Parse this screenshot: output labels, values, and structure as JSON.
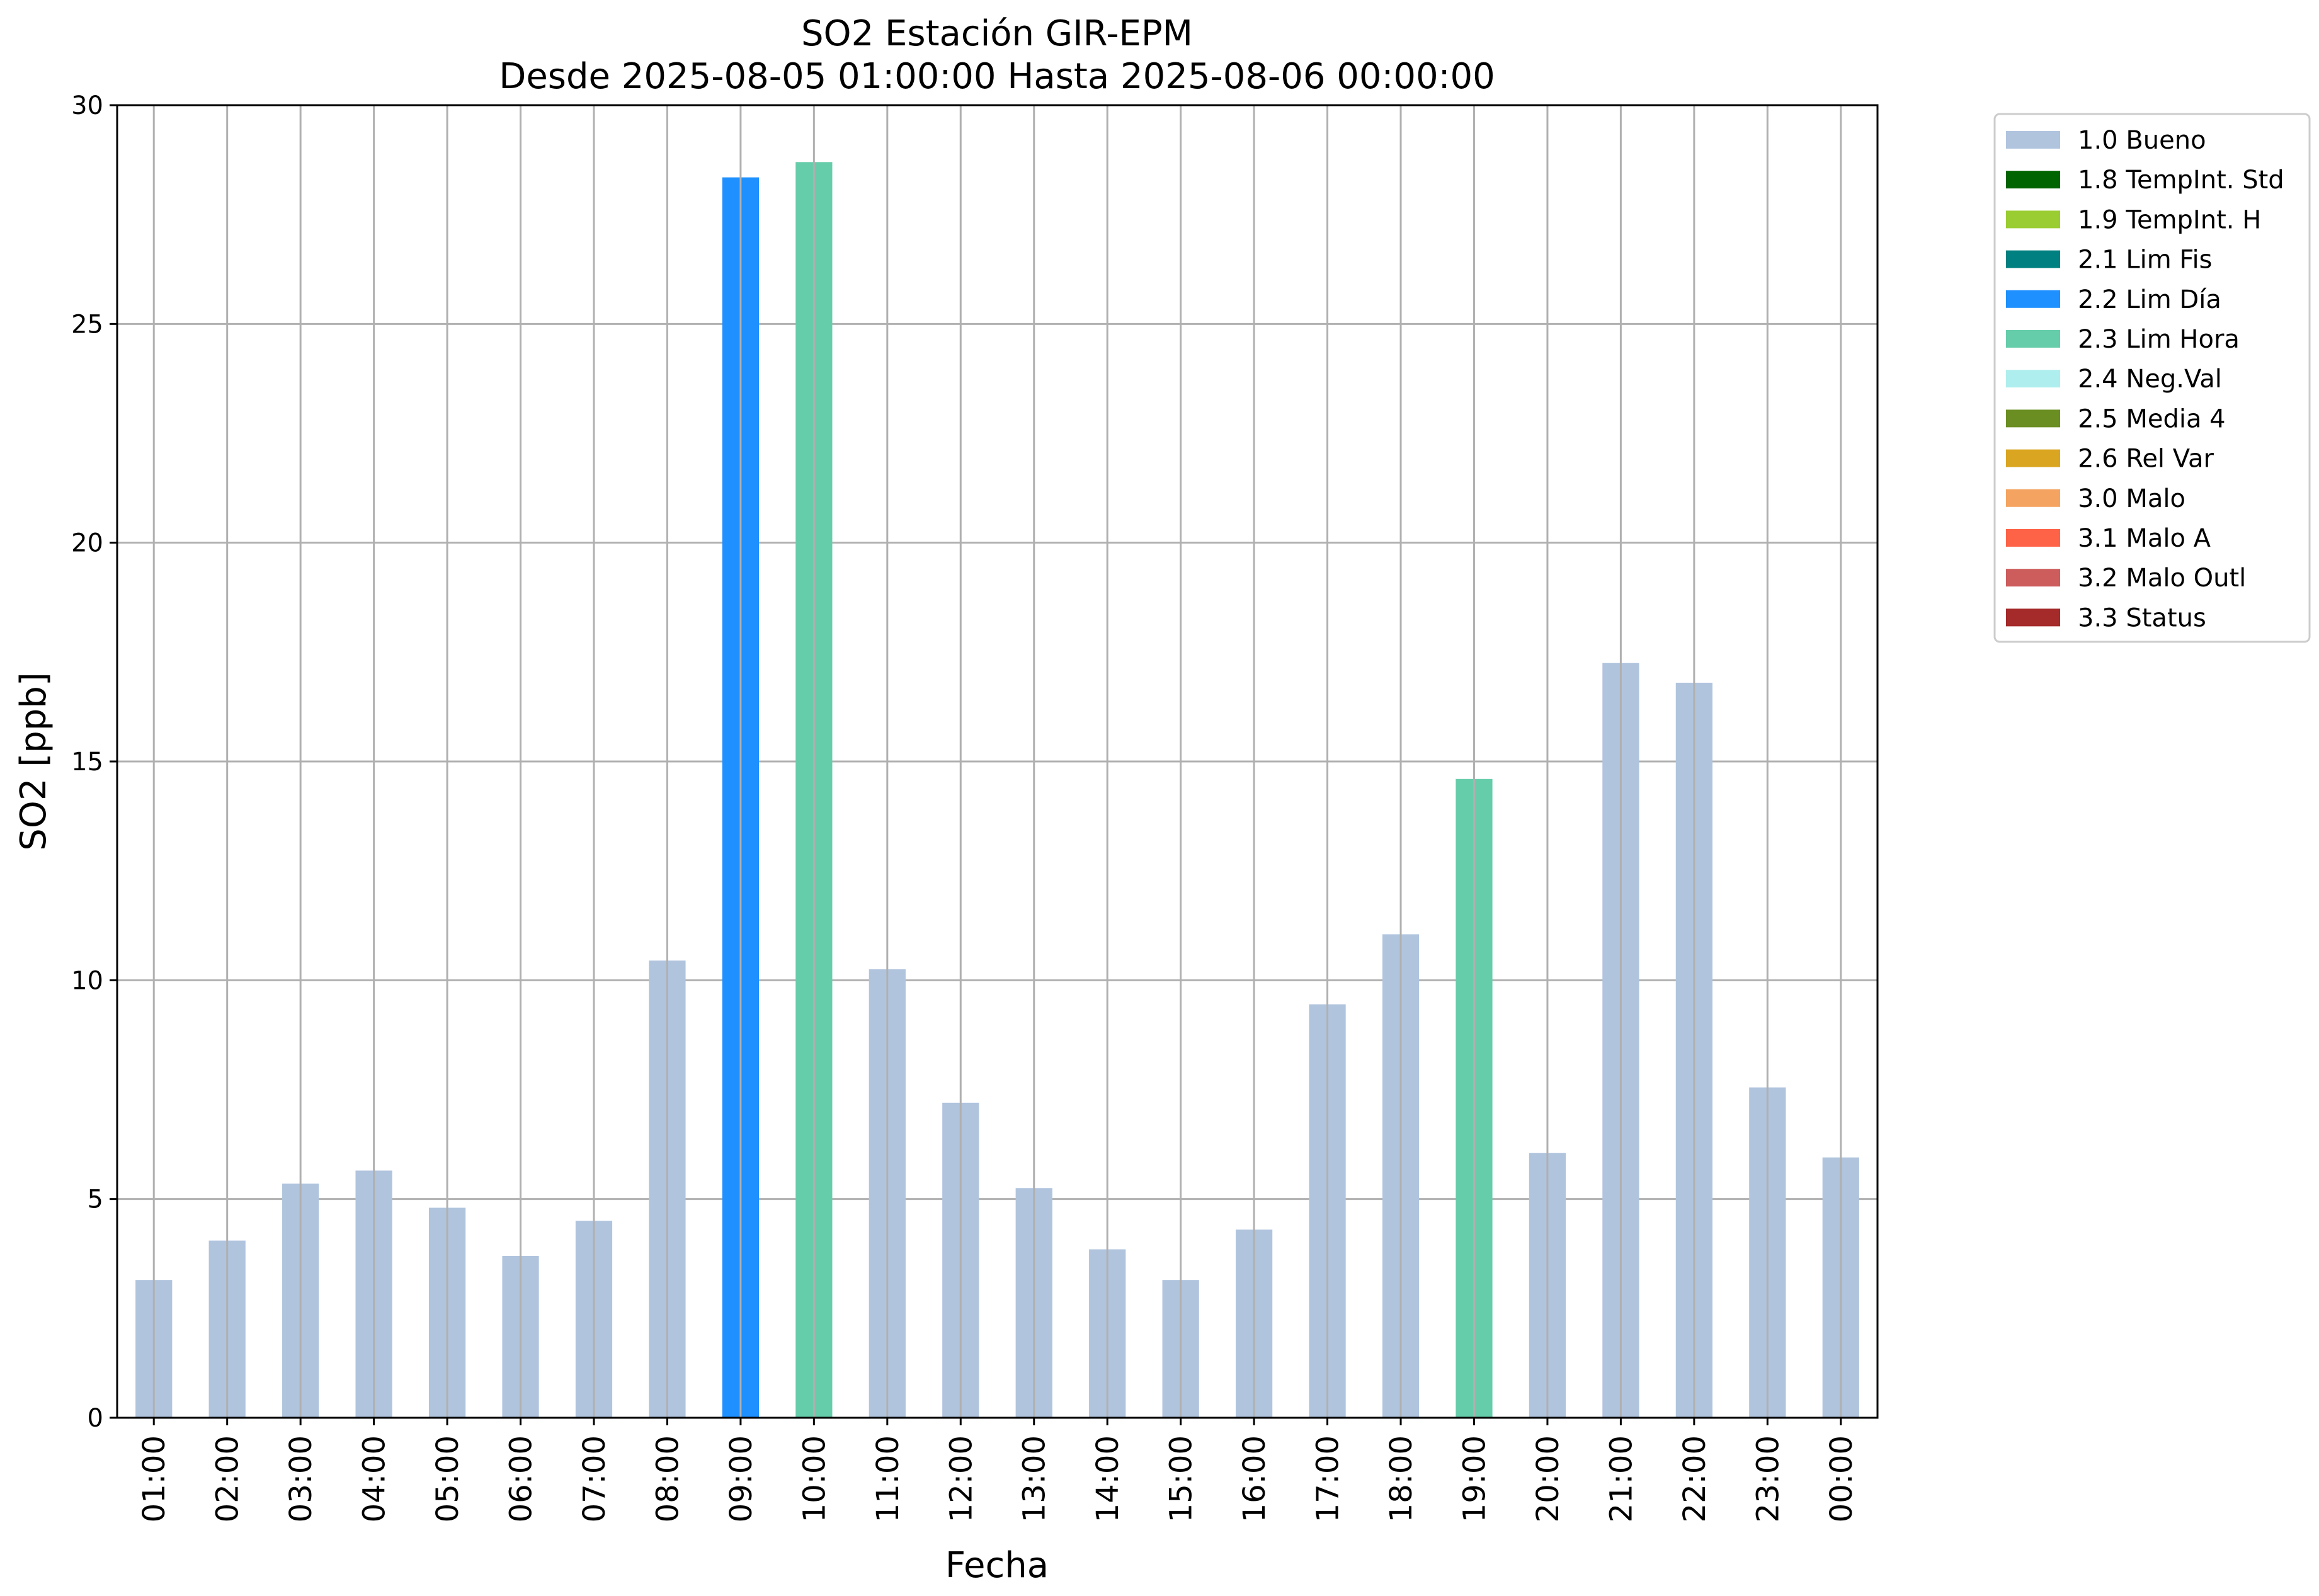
{
  "chart_data": {
    "type": "bar",
    "title": "SO2 Estación GIR-EPM",
    "subtitle": "Desde 2025-08-05 01:00:00 Hasta 2025-08-06 00:00:00",
    "xlabel": "Fecha",
    "ylabel": "SO2 [ppb]",
    "ylim": [
      0,
      30
    ],
    "yticks": [
      0,
      5,
      10,
      15,
      20,
      25,
      30
    ],
    "grid": true,
    "legend_position": "outside-top-right",
    "categories": [
      "01:00",
      "02:00",
      "03:00",
      "04:00",
      "05:00",
      "06:00",
      "07:00",
      "08:00",
      "09:00",
      "10:00",
      "11:00",
      "12:00",
      "13:00",
      "14:00",
      "15:00",
      "16:00",
      "17:00",
      "18:00",
      "19:00",
      "20:00",
      "21:00",
      "22:00",
      "23:00",
      "00:00"
    ],
    "values": [
      3.15,
      4.05,
      5.35,
      5.65,
      4.8,
      3.7,
      4.5,
      10.45,
      28.35,
      28.7,
      10.25,
      7.2,
      5.25,
      3.85,
      3.15,
      4.3,
      9.45,
      11.05,
      14.6,
      6.05,
      17.25,
      16.8,
      7.55,
      5.95
    ],
    "flags": [
      "1.0 Bueno",
      "1.0 Bueno",
      "1.0 Bueno",
      "1.0 Bueno",
      "1.0 Bueno",
      "1.0 Bueno",
      "1.0 Bueno",
      "1.0 Bueno",
      "2.2 Lim Día",
      "2.3 Lim Hora",
      "1.0 Bueno",
      "1.0 Bueno",
      "1.0 Bueno",
      "1.0 Bueno",
      "1.0 Bueno",
      "1.0 Bueno",
      "1.0 Bueno",
      "1.0 Bueno",
      "2.3 Lim Hora",
      "1.0 Bueno",
      "1.0 Bueno",
      "1.0 Bueno",
      "1.0 Bueno",
      "1.0 Bueno"
    ],
    "legend": [
      {
        "name": "1.0 Bueno",
        "color": "#B0C4DE"
      },
      {
        "name": "1.8 TempInt. Std",
        "color": "#006400"
      },
      {
        "name": "1.9 TempInt. H",
        "color": "#9ACD32"
      },
      {
        "name": "2.1 Lim Fis",
        "color": "#008080"
      },
      {
        "name": "2.2 Lim Día",
        "color": "#1E90FF"
      },
      {
        "name": "2.3 Lim Hora",
        "color": "#66CDAA"
      },
      {
        "name": "2.4 Neg.Val",
        "color": "#AFEEEE"
      },
      {
        "name": "2.5 Media 4",
        "color": "#6B8E23"
      },
      {
        "name": "2.6 Rel Var",
        "color": "#DAA520"
      },
      {
        "name": "3.0 Malo",
        "color": "#F4A460"
      },
      {
        "name": "3.1 Malo A",
        "color": "#FF6347"
      },
      {
        "name": "3.2 Malo Outl",
        "color": "#CD5C5C"
      },
      {
        "name": "3.3 Status",
        "color": "#A52A2A"
      }
    ]
  }
}
